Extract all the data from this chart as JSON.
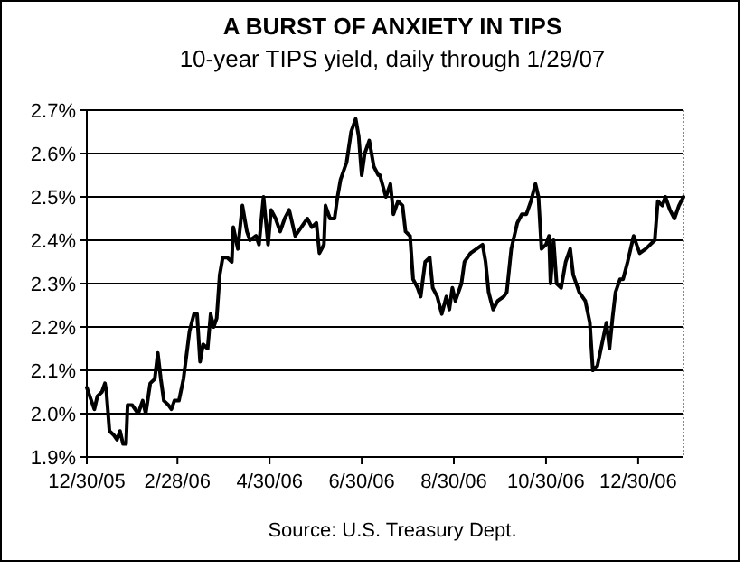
{
  "chart_data": {
    "type": "line",
    "title": "A BURST OF ANXIETY IN TIPS",
    "subtitle": "10-year TIPS yield, daily through 1/29/07",
    "annotations": [
      "Source: U.S. Treasury Dept."
    ],
    "xlim": [
      "2005-12-30",
      "2007-01-29"
    ],
    "xticks": [
      {
        "value": "2005-12-30",
        "label": "12/30/05"
      },
      {
        "value": "2006-02-28",
        "label": "2/28/06"
      },
      {
        "value": "2006-04-30",
        "label": "4/30/06"
      },
      {
        "value": "2006-06-30",
        "label": "6/30/06"
      },
      {
        "value": "2006-08-30",
        "label": "8/30/06"
      },
      {
        "value": "2006-10-30",
        "label": "10/30/06"
      },
      {
        "value": "2006-12-30",
        "label": "12/30/06"
      }
    ],
    "ylim": [
      1.9,
      2.7
    ],
    "yticks": [
      {
        "value": 1.9,
        "label": "1.9%"
      },
      {
        "value": 2.0,
        "label": "2.0%"
      },
      {
        "value": 2.1,
        "label": "2.1%"
      },
      {
        "value": 2.2,
        "label": "2.2%"
      },
      {
        "value": 2.3,
        "label": "2.3%"
      },
      {
        "value": 2.4,
        "label": "2.4%"
      },
      {
        "value": 2.5,
        "label": "2.5%"
      },
      {
        "value": 2.6,
        "label": "2.6%"
      },
      {
        "value": 2.7,
        "label": "2.7%"
      }
    ],
    "grid": "y",
    "marker": "none",
    "line_style": "solid",
    "x": [
      "2005-12-30",
      "2006-01-01",
      "2006-01-04",
      "2006-01-06",
      "2006-01-09",
      "2006-01-11",
      "2006-01-12",
      "2006-01-14",
      "2006-01-17",
      "2006-01-19",
      "2006-01-21",
      "2006-01-23",
      "2006-01-25",
      "2006-01-26",
      "2006-01-29",
      "2006-02-02",
      "2006-02-05",
      "2006-02-07",
      "2006-02-10",
      "2006-02-13",
      "2006-02-15",
      "2006-02-17",
      "2006-02-19",
      "2006-02-22",
      "2006-02-24",
      "2006-02-26",
      "2006-03-01",
      "2006-03-04",
      "2006-03-08",
      "2006-03-11",
      "2006-03-13",
      "2006-03-15",
      "2006-03-17",
      "2006-03-20",
      "2006-03-22",
      "2006-03-24",
      "2006-03-26",
      "2006-03-28",
      "2006-03-30",
      "2006-04-02",
      "2006-04-05",
      "2006-04-06",
      "2006-04-09",
      "2006-04-12",
      "2006-04-15",
      "2006-04-17",
      "2006-04-21",
      "2006-04-23",
      "2006-04-26",
      "2006-04-29",
      "2006-05-01",
      "2006-05-04",
      "2006-05-07",
      "2006-05-10",
      "2006-05-13",
      "2006-05-17",
      "2006-05-21",
      "2006-05-25",
      "2006-05-28",
      "2006-05-31",
      "2006-06-02",
      "2006-06-05",
      "2006-06-06",
      "2006-06-09",
      "2006-06-12",
      "2006-06-14",
      "2006-06-16",
      "2006-06-20",
      "2006-06-23",
      "2006-06-26",
      "2006-06-28",
      "2006-06-30",
      "2006-07-02",
      "2006-07-05",
      "2006-07-08",
      "2006-07-11",
      "2006-07-12",
      "2006-07-16",
      "2006-07-19",
      "2006-07-21",
      "2006-07-24",
      "2006-07-27",
      "2006-07-29",
      "2006-08-01",
      "2006-08-03",
      "2006-08-06",
      "2006-08-08",
      "2006-08-11",
      "2006-08-14",
      "2006-08-16",
      "2006-08-19",
      "2006-08-22",
      "2006-08-25",
      "2006-08-27",
      "2006-08-29",
      "2006-08-31",
      "2006-09-04",
      "2006-09-06",
      "2006-09-10",
      "2006-09-14",
      "2006-09-18",
      "2006-09-20",
      "2006-09-22",
      "2006-09-25",
      "2006-09-28",
      "2006-10-02",
      "2006-10-04",
      "2006-10-07",
      "2006-10-11",
      "2006-10-14",
      "2006-10-17",
      "2006-10-20",
      "2006-10-23",
      "2006-10-25",
      "2006-10-27",
      "2006-10-30",
      "2006-11-01",
      "2006-11-02",
      "2006-11-04",
      "2006-11-06",
      "2006-11-09",
      "2006-11-12",
      "2006-11-15",
      "2006-11-17",
      "2006-11-21",
      "2006-11-25",
      "2006-11-28",
      "2006-11-30",
      "2006-12-03",
      "2006-12-06",
      "2006-12-09",
      "2006-12-11",
      "2006-12-13",
      "2006-12-15",
      "2006-12-18",
      "2006-12-20",
      "2006-12-23",
      "2006-12-25",
      "2006-12-27",
      "2006-12-29",
      "2006-12-31",
      "2007-01-04",
      "2007-01-07",
      "2007-01-10",
      "2007-01-12",
      "2007-01-15",
      "2007-01-17",
      "2007-01-20",
      "2007-01-23",
      "2007-01-26",
      "2007-01-29"
    ],
    "series": [
      {
        "color": "#000000",
        "values": [
          2.06,
          2.04,
          2.01,
          2.04,
          2.05,
          2.07,
          2.05,
          1.96,
          1.95,
          1.94,
          1.96,
          1.93,
          1.93,
          2.02,
          2.02,
          2.0,
          2.03,
          2.0,
          2.07,
          2.08,
          2.14,
          2.08,
          2.03,
          2.02,
          2.01,
          2.03,
          2.03,
          2.08,
          2.19,
          2.23,
          2.23,
          2.12,
          2.16,
          2.15,
          2.23,
          2.2,
          2.22,
          2.32,
          2.36,
          2.36,
          2.35,
          2.43,
          2.38,
          2.48,
          2.42,
          2.4,
          2.41,
          2.39,
          2.5,
          2.39,
          2.47,
          2.45,
          2.42,
          2.45,
          2.47,
          2.41,
          2.43,
          2.45,
          2.43,
          2.44,
          2.37,
          2.39,
          2.48,
          2.45,
          2.45,
          2.5,
          2.54,
          2.58,
          2.65,
          2.68,
          2.64,
          2.55,
          2.6,
          2.63,
          2.57,
          2.55,
          2.55,
          2.5,
          2.53,
          2.46,
          2.49,
          2.48,
          2.42,
          2.41,
          2.31,
          2.29,
          2.27,
          2.35,
          2.36,
          2.29,
          2.27,
          2.23,
          2.27,
          2.24,
          2.29,
          2.26,
          2.3,
          2.35,
          2.37,
          2.38,
          2.39,
          2.35,
          2.28,
          2.24,
          2.26,
          2.27,
          2.28,
          2.38,
          2.44,
          2.46,
          2.46,
          2.49,
          2.53,
          2.5,
          2.38,
          2.39,
          2.41,
          2.3,
          2.4,
          2.3,
          2.29,
          2.35,
          2.38,
          2.32,
          2.28,
          2.26,
          2.21,
          2.1,
          2.11,
          2.16,
          2.21,
          2.15,
          2.22,
          2.28,
          2.31,
          2.31,
          2.35,
          2.38,
          2.41,
          2.39,
          2.37,
          2.38,
          2.39,
          2.4,
          2.49,
          2.48,
          2.5,
          2.47,
          2.45,
          2.48,
          2.5
        ]
      }
    ]
  }
}
